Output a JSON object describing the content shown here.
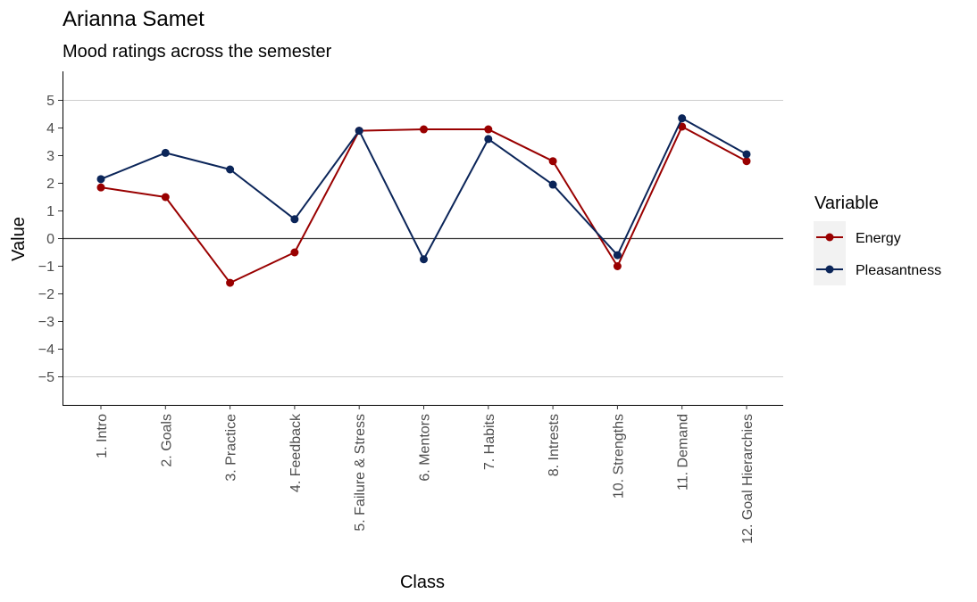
{
  "chart_data": {
    "type": "line",
    "title": "Arianna Samet",
    "subtitle": "Mood ratings across the semester",
    "xlabel": "Class",
    "ylabel": "Value",
    "categories": [
      "1. Intro",
      "2. Goals",
      "3. Practice",
      "4. Feedback",
      "5. Failure & Stress",
      "6. Mentors",
      "7. Habits",
      "8. Intrests",
      "10. Strengths",
      "11. Demand",
      "12. Goal Hierarchies"
    ],
    "series": [
      {
        "name": "Energy",
        "color": "#990000",
        "values": [
          1.85,
          1.5,
          -1.6,
          -0.5,
          3.9,
          3.95,
          3.95,
          2.8,
          -1.0,
          4.05,
          2.8
        ]
      },
      {
        "name": "Pleasantness",
        "color": "#0b2559",
        "values": [
          2.15,
          3.1,
          2.5,
          0.7,
          3.9,
          -0.75,
          3.6,
          1.95,
          -0.6,
          4.35,
          3.05
        ]
      }
    ],
    "ylim": [
      -6,
      6
    ],
    "yticks": [
      "−5",
      "−4",
      "−3",
      "−2",
      "−1",
      "0",
      "1",
      "2",
      "3",
      "4",
      "5"
    ],
    "reference_lines": [
      -5,
      5
    ],
    "zero_line": 0,
    "legend": {
      "title": "Variable",
      "position": "right"
    },
    "grid": false
  }
}
